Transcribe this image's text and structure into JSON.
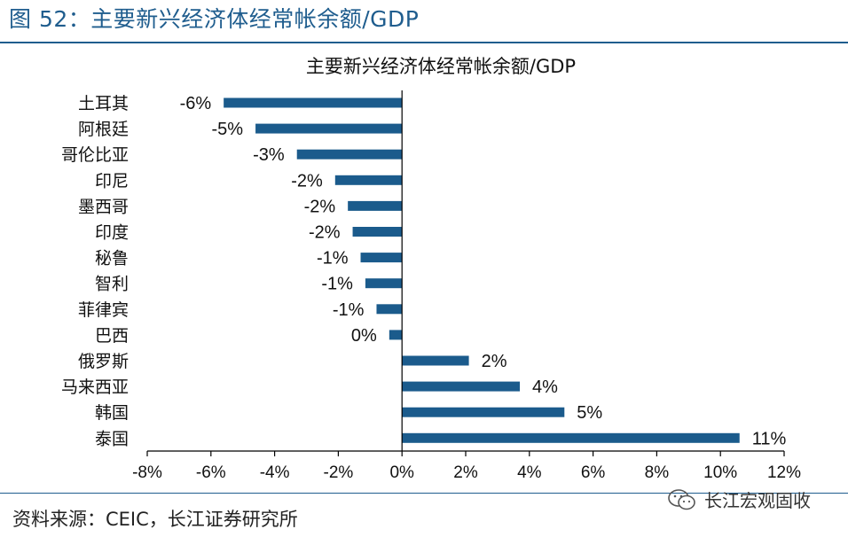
{
  "header": {
    "title": "图 52：主要新兴经济体经常帐余额/GDP"
  },
  "footer": {
    "source": "资料来源：CEIC，长江证券研究所"
  },
  "watermark": {
    "text": "长江宏观固收",
    "icon": "wechat-icon"
  },
  "colors": {
    "accent": "#1f5d8e",
    "bar": "#1b5b8c"
  },
  "chart_data": {
    "type": "bar",
    "orientation": "horizontal",
    "title": "主要新兴经济体经常帐余额/GDP",
    "categories": [
      "土耳其",
      "阿根廷",
      "哥伦比亚",
      "印尼",
      "墨西哥",
      "印度",
      "秘鲁",
      "智利",
      "菲律宾",
      "巴西",
      "俄罗斯",
      "马来西亚",
      "韩国",
      "泰国"
    ],
    "values": [
      -5.6,
      -4.6,
      -3.3,
      -2.1,
      -1.7,
      -1.55,
      -1.3,
      -1.15,
      -0.8,
      -0.4,
      2.1,
      3.7,
      5.1,
      10.6
    ],
    "data_labels": [
      "-6%",
      "-5%",
      "-3%",
      "-2%",
      "-2%",
      "-2%",
      "-1%",
      "-1%",
      "-1%",
      "0%",
      "2%",
      "4%",
      "5%",
      "11%"
    ],
    "xlim": [
      -8,
      12
    ],
    "xticks": [
      -8,
      -6,
      -4,
      -2,
      0,
      2,
      4,
      6,
      8,
      10,
      12
    ],
    "xtick_labels": [
      "-8%",
      "-6%",
      "-4%",
      "-2%",
      "0%",
      "2%",
      "4%",
      "6%",
      "8%",
      "10%",
      "12%"
    ],
    "grid": false,
    "legend": "none"
  }
}
